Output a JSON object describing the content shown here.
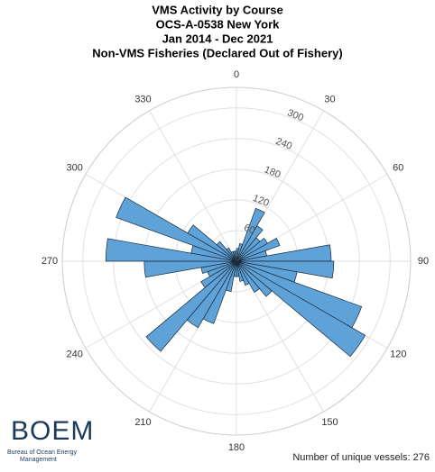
{
  "chart_data": {
    "type": "polar_histogram",
    "title": [
      "VMS Activity by Course",
      "OCS-A-0538 New York",
      "Jan 2014 - Dec 2021",
      "Non-VMS Fisheries (Declared Out of Fishery)"
    ],
    "bins": [
      0,
      10,
      20,
      30,
      40,
      50,
      60,
      70,
      80,
      90,
      100,
      110,
      120,
      130,
      140,
      150,
      160,
      170,
      180,
      190,
      200,
      210,
      220,
      230,
      240,
      250,
      260,
      270,
      280,
      290,
      300,
      310,
      320,
      330,
      340,
      350,
      360
    ],
    "values": [
      25,
      35,
      110,
      80,
      60,
      70,
      90,
      60,
      185,
      190,
      120,
      260,
      290,
      90,
      70,
      50,
      40,
      30,
      30,
      60,
      130,
      150,
      230,
      80,
      60,
      70,
      180,
      255,
      90,
      250,
      110,
      50,
      30,
      20,
      20,
      20
    ],
    "color": "#5fa2d8",
    "rlim": [
      0,
      340
    ],
    "rticks": [
      0,
      60,
      120,
      180,
      240,
      300
    ],
    "thetaticks": [
      0,
      30,
      60,
      90,
      120,
      150,
      180,
      210,
      240,
      270,
      300,
      330
    ],
    "theta_zero": "top",
    "theta_direction": "clockwise",
    "grid": true,
    "annotation": "Number of unique vessels: 276",
    "logo": {
      "name": "BOEM",
      "subtitle": [
        "Bureau of Ocean Energy",
        "Management"
      ]
    }
  }
}
